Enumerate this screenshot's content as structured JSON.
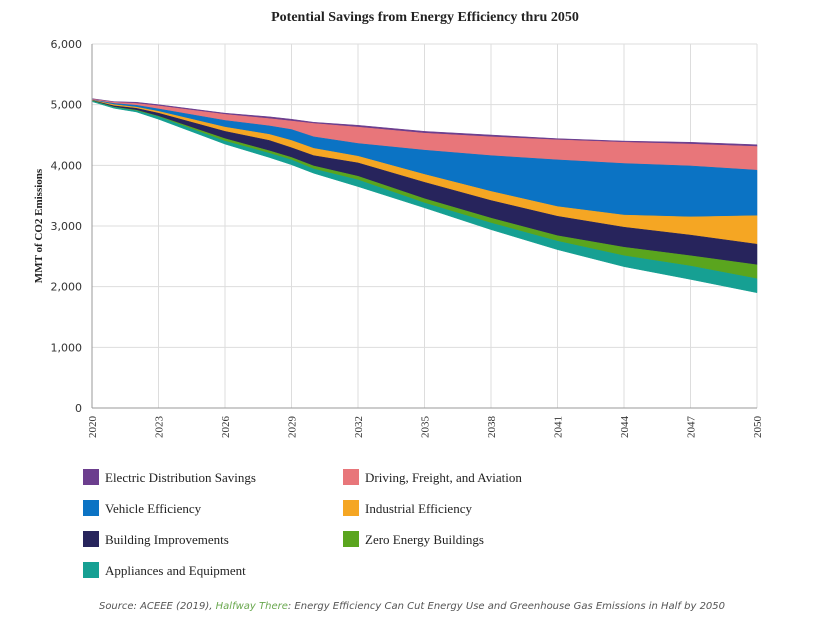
{
  "chart_data": {
    "type": "area",
    "stacked": true,
    "title": "Potential Savings from Energy Efficiency thru 2050",
    "ylabel": "MMT of CO2 Emissions",
    "xlabel": "",
    "ylim": [
      0,
      6000
    ],
    "yticks": [
      "0",
      "1,000",
      "2,000",
      "3,000",
      "4,000",
      "5,000",
      "6,000"
    ],
    "xticks": [
      "2020",
      "2023",
      "2026",
      "2029",
      "2032",
      "2035",
      "2038",
      "2041",
      "2044",
      "2047",
      "2050"
    ],
    "grid": true,
    "legend_position": "bottom",
    "x": [
      2020,
      2021,
      2022,
      2023,
      2026,
      2028,
      2029,
      2030,
      2032,
      2035,
      2038,
      2041,
      2044,
      2047,
      2050
    ],
    "boundaries": {
      "total": [
        5100,
        5050,
        5040,
        5000,
        4860,
        4800,
        4760,
        4710,
        4660,
        4560,
        4500,
        4440,
        4400,
        4380,
        4340
      ],
      "after_electric": [
        5090,
        5040,
        5020,
        4980,
        4840,
        4770,
        4730,
        4690,
        4630,
        4530,
        4470,
        4420,
        4380,
        4350,
        4310
      ],
      "after_driving": [
        5080,
        5020,
        4990,
        4930,
        4740,
        4650,
        4590,
        4470,
        4360,
        4250,
        4160,
        4090,
        4030,
        3990,
        3920
      ],
      "after_vehicle": [
        5075,
        5000,
        4960,
        4890,
        4630,
        4510,
        4410,
        4280,
        4150,
        3850,
        3570,
        3320,
        3180,
        3150,
        3170
      ],
      "after_industrial": [
        5070,
        4980,
        4940,
        4860,
        4560,
        4410,
        4290,
        4160,
        4040,
        3720,
        3420,
        3160,
        2980,
        2850,
        2700
      ],
      "after_building": [
        5065,
        4960,
        4910,
        4810,
        4440,
        4240,
        4130,
        3990,
        3820,
        3450,
        3130,
        2840,
        2650,
        2510,
        2360
      ],
      "after_zero": [
        5060,
        4955,
        4900,
        4800,
        4400,
        4200,
        4090,
        3940,
        3760,
        3380,
        3050,
        2750,
        2510,
        2340,
        2130
      ],
      "after_appliance": [
        5050,
        4940,
        4880,
        4760,
        4350,
        4130,
        4010,
        3870,
        3650,
        3300,
        2940,
        2610,
        2330,
        2120,
        1900
      ]
    },
    "series": [
      {
        "name": "Electric Distribution Savings",
        "color": "#6c3e8e",
        "top": "total",
        "bottom": "after_electric"
      },
      {
        "name": "Driving, Freight, and Aviation",
        "color": "#e8767a",
        "top": "after_electric",
        "bottom": "after_driving"
      },
      {
        "name": "Vehicle Efficiency",
        "color": "#0b73c4",
        "top": "after_driving",
        "bottom": "after_vehicle"
      },
      {
        "name": "Industrial Efficiency",
        "color": "#f5a623",
        "top": "after_vehicle",
        "bottom": "after_industrial"
      },
      {
        "name": "Building Improvements",
        "color": "#27245c",
        "top": "after_industrial",
        "bottom": "after_building"
      },
      {
        "name": "Zero Energy Buildings",
        "color": "#5aa51e",
        "top": "after_building",
        "bottom": "after_zero"
      },
      {
        "name": "Appliances and Equipment",
        "color": "#16a093",
        "top": "after_zero",
        "bottom": "after_appliance"
      }
    ]
  },
  "source": {
    "prefix": "Source: ACEEE (2019), ",
    "highlight": "Halfway There",
    "suffix": ": Energy Efficiency Can Cut Energy Use and Greenhouse Gas Emissions in Half by 2050"
  }
}
